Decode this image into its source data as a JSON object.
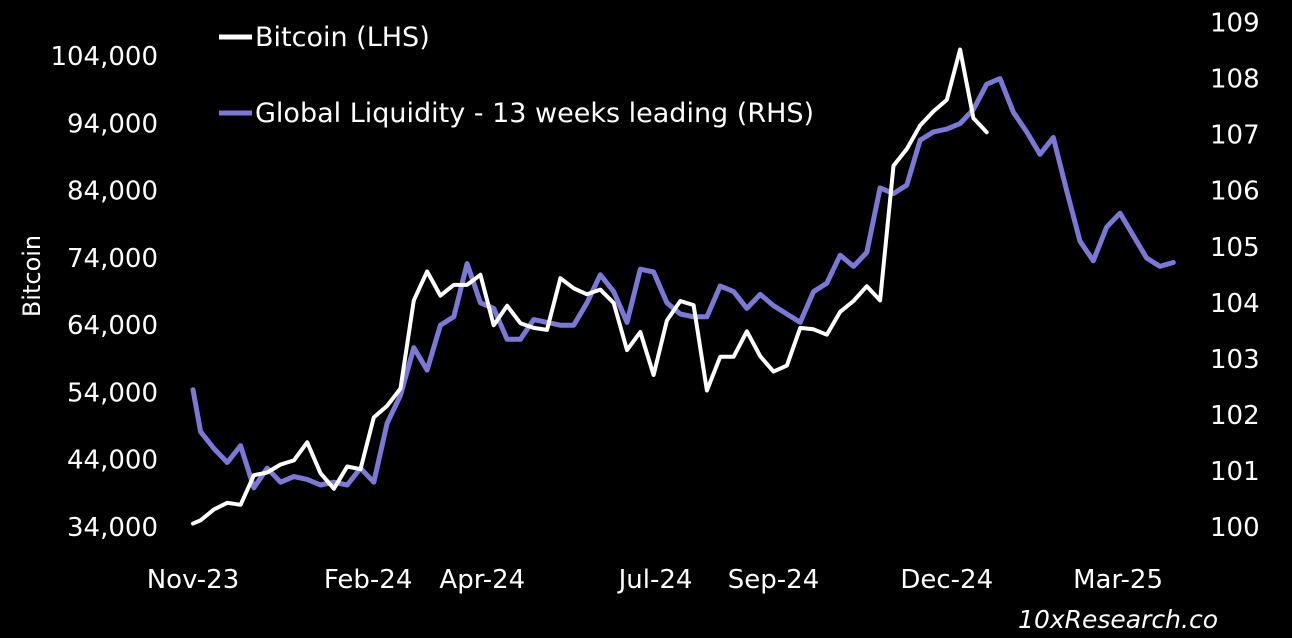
{
  "chart_data": {
    "type": "line",
    "title": "",
    "xlabel": "",
    "ylabel": "Bitcoin",
    "y2label": "",
    "x_tick_labels": [
      "Nov-23",
      "Feb-24",
      "Apr-24",
      "Jul-24",
      "Sep-24",
      "Dec-24",
      "Mar-25"
    ],
    "x_range": [
      "2023-11-01",
      "2025-04-12"
    ],
    "x_ticks": [
      "2023-11-01",
      "2024-02-01",
      "2024-04-01",
      "2024-07-01",
      "2024-09-01",
      "2024-12-01",
      "2025-03-01"
    ],
    "y_left": {
      "ticks": [
        34000,
        44000,
        54000,
        64000,
        74000,
        84000,
        94000,
        104000
      ],
      "tick_labels": [
        "34,000",
        "44,000",
        "54,000",
        "64,000",
        "74,000",
        "84,000",
        "94,000",
        "104,000"
      ],
      "range": [
        34000,
        109000
      ]
    },
    "y_right": {
      "ticks": [
        100,
        101,
        102,
        103,
        104,
        105,
        106,
        107,
        108,
        109
      ],
      "tick_labels": [
        "100",
        "101",
        "102",
        "103",
        "104",
        "105",
        "106",
        "107",
        "108",
        "109"
      ],
      "range": [
        100,
        109
      ]
    },
    "grid": false,
    "legend_position": "top-left",
    "series": [
      {
        "name": "Bitcoin (LHS)",
        "axis": "left",
        "color": "#ffffff",
        "x": [
          "2023-11-01",
          "2023-11-05",
          "2023-11-12",
          "2023-11-19",
          "2023-11-26",
          "2023-12-03",
          "2023-12-10",
          "2023-12-17",
          "2023-12-24",
          "2023-12-31",
          "2024-01-07",
          "2024-01-14",
          "2024-01-21",
          "2024-01-28",
          "2024-02-04",
          "2024-02-11",
          "2024-02-18",
          "2024-02-25",
          "2024-03-03",
          "2024-03-10",
          "2024-03-17",
          "2024-03-24",
          "2024-03-31",
          "2024-04-07",
          "2024-04-14",
          "2024-04-21",
          "2024-04-28",
          "2024-05-05",
          "2024-05-12",
          "2024-05-19",
          "2024-05-26",
          "2024-06-02",
          "2024-06-09",
          "2024-06-16",
          "2024-06-23",
          "2024-06-30",
          "2024-07-07",
          "2024-07-14",
          "2024-07-21",
          "2024-07-28",
          "2024-08-04",
          "2024-08-11",
          "2024-08-18",
          "2024-08-25",
          "2024-09-01",
          "2024-09-08",
          "2024-09-15",
          "2024-09-22",
          "2024-09-29",
          "2024-10-06",
          "2024-10-13",
          "2024-10-20",
          "2024-10-27",
          "2024-11-03",
          "2024-11-10",
          "2024-11-17",
          "2024-11-24",
          "2024-12-01",
          "2024-12-08",
          "2024-12-15",
          "2024-12-22",
          "2024-12-29",
          "2025-01-05"
        ],
        "values": [
          34500,
          35000,
          36600,
          37600,
          37300,
          41700,
          42100,
          43300,
          43900,
          46600,
          42000,
          39700,
          43000,
          42600,
          50300,
          52000,
          54600,
          67700,
          72000,
          68400,
          70000,
          70000,
          71500,
          64000,
          66900,
          64300,
          63600,
          63300,
          71000,
          69500,
          68600,
          69300,
          67300,
          60300,
          63000,
          56600,
          64700,
          67600,
          67000,
          54300,
          59300,
          59300,
          63100,
          59400,
          57100,
          58000,
          63600,
          63400,
          62600,
          66000,
          67600,
          69800,
          67700,
          87700,
          90200,
          93700,
          95800,
          97500,
          105000,
          94800,
          92700,
          null,
          null
        ]
      },
      {
        "name": "Global Liquidity - 13 weeks leading (RHS)",
        "axis": "right",
        "color": "#7b78d8",
        "x": [
          "2023-11-01",
          "2023-11-05",
          "2023-11-12",
          "2023-11-19",
          "2023-11-26",
          "2023-12-03",
          "2023-12-10",
          "2023-12-17",
          "2023-12-24",
          "2023-12-31",
          "2024-01-07",
          "2024-01-14",
          "2024-01-21",
          "2024-01-28",
          "2024-02-04",
          "2024-02-11",
          "2024-02-18",
          "2024-02-25",
          "2024-03-03",
          "2024-03-10",
          "2024-03-17",
          "2024-03-24",
          "2024-03-31",
          "2024-04-07",
          "2024-04-14",
          "2024-04-21",
          "2024-04-28",
          "2024-05-05",
          "2024-05-12",
          "2024-05-19",
          "2024-05-26",
          "2024-06-02",
          "2024-06-09",
          "2024-06-16",
          "2024-06-23",
          "2024-06-30",
          "2024-07-07",
          "2024-07-14",
          "2024-07-21",
          "2024-07-28",
          "2024-08-04",
          "2024-08-11",
          "2024-08-18",
          "2024-08-25",
          "2024-09-01",
          "2024-09-08",
          "2024-09-15",
          "2024-09-22",
          "2024-09-29",
          "2024-10-06",
          "2024-10-13",
          "2024-10-20",
          "2024-10-27",
          "2024-11-03",
          "2024-11-10",
          "2024-11-17",
          "2024-11-24",
          "2024-12-01",
          "2024-12-08",
          "2024-12-15",
          "2024-12-22",
          "2024-12-29",
          "2025-01-05",
          "2025-01-12",
          "2025-01-19",
          "2025-01-26",
          "2025-02-02",
          "2025-02-09",
          "2025-02-16",
          "2025-02-23",
          "2025-03-02",
          "2025-03-09",
          "2025-03-16",
          "2025-03-23",
          "2025-03-30",
          "2025-04-06",
          "2025-04-12"
        ],
        "values": [
          102.45,
          101.7,
          101.4,
          101.15,
          101.45,
          100.7,
          101.05,
          100.8,
          100.9,
          100.85,
          100.75,
          100.8,
          100.75,
          101.05,
          100.8,
          101.85,
          102.35,
          103.2,
          102.8,
          103.6,
          103.75,
          104.7,
          104,
          103.9,
          103.35,
          103.35,
          103.7,
          103.65,
          103.6,
          103.6,
          104,
          104.5,
          104.2,
          103.65,
          104.6,
          104.55,
          104,
          103.8,
          103.75,
          103.75,
          104.3,
          104.2,
          103.9,
          104.15,
          103.95,
          103.8,
          103.65,
          104.2,
          104.35,
          104.85,
          104.65,
          104.9,
          106.05,
          105.95,
          106.1,
          106.9,
          107.05,
          107.1,
          107.2,
          107.45,
          107.9,
          108,
          107.4,
          107.05,
          106.65,
          106.95,
          106,
          105.1,
          104.75,
          105.35,
          105.6,
          105.2,
          104.8,
          104.65,
          104.72,
          null,
          null
        ]
      }
    ]
  },
  "watermark": "10xResearch.co"
}
